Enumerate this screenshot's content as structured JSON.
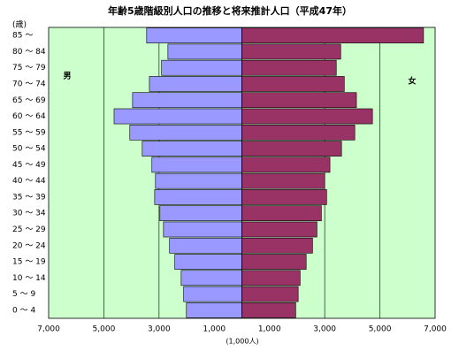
{
  "chart_data": {
    "type": "pyramid",
    "title": "年齢5歳階級別人口の推移と将来推計人口（平成47年）",
    "y_label": "(歳)",
    "x_label": "(1,000人)",
    "categories": [
      "85 ～",
      "80 ～ 84",
      "75 ～ 79",
      "70 ～ 74",
      "65 ～ 69",
      "60 ～ 64",
      "55 ～ 59",
      "50 ～ 54",
      "45 ～ 49",
      "40 ～ 44",
      "35 ～ 39",
      "30 ～ 34",
      "25 ～ 29",
      "20 ～ 24",
      "15 ～ 19",
      "10 ～ 14",
      "5 ～ 9",
      "0 ～ 4"
    ],
    "series": [
      {
        "name": "男",
        "color": "#9999ff",
        "side": "left",
        "values": [
          3450,
          2680,
          2910,
          3350,
          3960,
          4630,
          4060,
          3610,
          3260,
          3130,
          3160,
          2970,
          2840,
          2620,
          2430,
          2200,
          2110,
          2010
        ]
      },
      {
        "name": "女",
        "color": "#993366",
        "side": "right",
        "values": [
          6580,
          3580,
          3420,
          3710,
          4150,
          4730,
          4090,
          3610,
          3190,
          3000,
          3070,
          2880,
          2720,
          2560,
          2330,
          2110,
          2040,
          1950
        ]
      }
    ],
    "xlim": [
      0,
      7000
    ],
    "xticks": [
      {
        "value": 1000,
        "label": "1,000"
      },
      {
        "value": 3000,
        "label": "3,000"
      },
      {
        "value": 5000,
        "label": "5,000"
      },
      {
        "value": 7000,
        "label": "7,000"
      }
    ],
    "background": "#ccffcc",
    "grid": true
  }
}
